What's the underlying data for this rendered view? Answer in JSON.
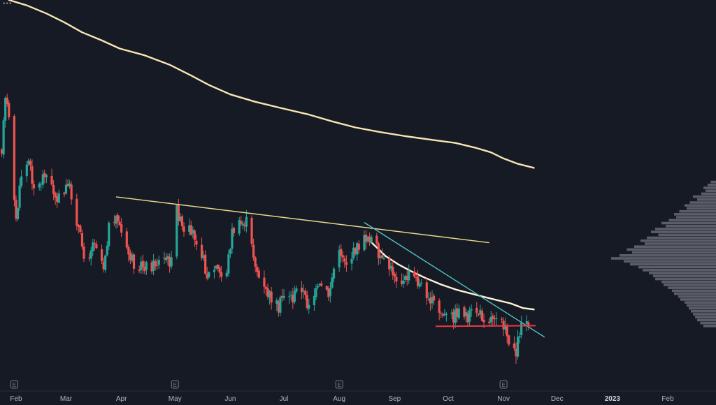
{
  "chart_data": {
    "type": "candlestick",
    "x_axis": {
      "labels": [
        {
          "text": "Feb",
          "date": "2022-02-01"
        },
        {
          "text": "Mar",
          "date": "2022-03-01"
        },
        {
          "text": "Apr",
          "date": "2022-04-01"
        },
        {
          "text": "May",
          "date": "2022-05-01"
        },
        {
          "text": "Jun",
          "date": "2022-06-01"
        },
        {
          "text": "Jul",
          "date": "2022-07-01"
        },
        {
          "text": "Aug",
          "date": "2022-08-01"
        },
        {
          "text": "Sep",
          "date": "2022-09-01"
        },
        {
          "text": "Oct",
          "date": "2022-10-01"
        },
        {
          "text": "Nov",
          "date": "2022-11-01"
        },
        {
          "text": "Dec",
          "date": "2022-12-01"
        },
        {
          "text": "2023",
          "date": "2023-01-01",
          "emphasis": true
        },
        {
          "text": "Feb",
          "date": "2023-02-01"
        }
      ],
      "range": [
        "2022-01-23",
        "2023-02-28"
      ]
    },
    "y_axis": {
      "visible": false,
      "range": [
        0,
        580
      ]
    },
    "earnings_markers": [
      "2022-01-31",
      "2022-05-01",
      "2022-08-01",
      "2022-11-01"
    ],
    "earnings_label": "E",
    "candles": {
      "start": "2022-01-24",
      "end": "2022-11-15",
      "up_color": "#26a69a",
      "down_color": "#ef5350",
      "path": [
        [
          "2022-01-24",
          220
        ],
        [
          "2022-01-26",
          150
        ],
        [
          "2022-01-28",
          170
        ],
        [
          "2022-02-01",
          330
        ],
        [
          "2022-02-04",
          260
        ],
        [
          "2022-02-08",
          240
        ],
        [
          "2022-02-12",
          290
        ],
        [
          "2022-02-17",
          255
        ],
        [
          "2022-02-22",
          285
        ],
        [
          "2022-02-27",
          300
        ],
        [
          "2022-03-02",
          268
        ],
        [
          "2022-03-08",
          340
        ],
        [
          "2022-03-12",
          390
        ],
        [
          "2022-03-17",
          355
        ],
        [
          "2022-03-22",
          395
        ],
        [
          "2022-03-26",
          318
        ],
        [
          "2022-03-30",
          325
        ],
        [
          "2022-04-03",
          370
        ],
        [
          "2022-04-08",
          390
        ],
        [
          "2022-04-13",
          395
        ],
        [
          "2022-04-18",
          395
        ],
        [
          "2022-04-25",
          385
        ],
        [
          "2022-04-29",
          390
        ],
        [
          "2022-05-02",
          310
        ],
        [
          "2022-05-06",
          350
        ],
        [
          "2022-05-10",
          340
        ],
        [
          "2022-05-15",
          365
        ],
        [
          "2022-05-19",
          410
        ],
        [
          "2022-05-24",
          398
        ],
        [
          "2022-05-29",
          420
        ],
        [
          "2022-06-02",
          345
        ],
        [
          "2022-06-06",
          335
        ],
        [
          "2022-06-10",
          330
        ],
        [
          "2022-06-14",
          380
        ],
        [
          "2022-06-18",
          425
        ],
        [
          "2022-06-23",
          440
        ],
        [
          "2022-06-28",
          455
        ],
        [
          "2022-07-02",
          430
        ],
        [
          "2022-07-06",
          445
        ],
        [
          "2022-07-10",
          418
        ],
        [
          "2022-07-14",
          452
        ],
        [
          "2022-07-18",
          438
        ],
        [
          "2022-07-22",
          425
        ],
        [
          "2022-07-26",
          440
        ],
        [
          "2022-07-30",
          385
        ],
        [
          "2022-08-02",
          375
        ],
        [
          "2022-08-06",
          395
        ],
        [
          "2022-08-10",
          370
        ],
        [
          "2022-08-14",
          362
        ],
        [
          "2022-08-17",
          350
        ],
        [
          "2022-08-21",
          360
        ],
        [
          "2022-08-25",
          390
        ],
        [
          "2022-08-29",
          398
        ],
        [
          "2022-09-02",
          410
        ],
        [
          "2022-09-06",
          420
        ],
        [
          "2022-09-10",
          405
        ],
        [
          "2022-09-14",
          420
        ],
        [
          "2022-09-18",
          432
        ],
        [
          "2022-09-22",
          445
        ],
        [
          "2022-09-26",
          465
        ],
        [
          "2022-09-30",
          472
        ],
        [
          "2022-10-04",
          470
        ],
        [
          "2022-10-08",
          458
        ],
        [
          "2022-10-12",
          470
        ],
        [
          "2022-10-16",
          460
        ],
        [
          "2022-10-20",
          470
        ],
        [
          "2022-10-24",
          475
        ],
        [
          "2022-10-28",
          465
        ],
        [
          "2022-10-31",
          470
        ],
        [
          "2022-11-02",
          490
        ],
        [
          "2022-11-05",
          512
        ],
        [
          "2022-11-08",
          520
        ],
        [
          "2022-11-11",
          478
        ],
        [
          "2022-11-15",
          475
        ]
      ]
    },
    "moving_averages": [
      {
        "color": "#f5e6b3",
        "points": [
          [
            "2022-01-28",
            0
          ],
          [
            "2022-02-07",
            8
          ],
          [
            "2022-02-18",
            20
          ],
          [
            "2022-02-28",
            33
          ],
          [
            "2022-03-10",
            48
          ],
          [
            "2022-03-21",
            60
          ],
          [
            "2022-03-31",
            72
          ],
          [
            "2022-04-14",
            82
          ],
          [
            "2022-04-28",
            96
          ],
          [
            "2022-05-10",
            112
          ],
          [
            "2022-05-20",
            126
          ],
          [
            "2022-06-01",
            140
          ],
          [
            "2022-06-15",
            151
          ],
          [
            "2022-06-29",
            160
          ],
          [
            "2022-07-15",
            170
          ],
          [
            "2022-07-28",
            180
          ],
          [
            "2022-08-10",
            189
          ],
          [
            "2022-08-24",
            196
          ],
          [
            "2022-09-07",
            202
          ],
          [
            "2022-09-21",
            207
          ],
          [
            "2022-10-05",
            212
          ],
          [
            "2022-10-16",
            219
          ],
          [
            "2022-10-25",
            226
          ],
          [
            "2022-11-01",
            235
          ],
          [
            "2022-11-09",
            243
          ],
          [
            "2022-11-18",
            249
          ]
        ]
      },
      {
        "color": "#fff3d6",
        "points": [
          [
            "2022-08-15",
            350
          ],
          [
            "2022-08-20",
            362
          ],
          [
            "2022-08-27",
            380
          ],
          [
            "2022-09-03",
            392
          ],
          [
            "2022-09-10",
            402
          ],
          [
            "2022-09-18",
            412
          ],
          [
            "2022-09-27",
            422
          ],
          [
            "2022-10-06",
            430
          ],
          [
            "2022-10-16",
            437
          ],
          [
            "2022-10-25",
            443
          ],
          [
            "2022-11-05",
            450
          ],
          [
            "2022-11-12",
            457
          ],
          [
            "2022-11-18",
            459
          ]
        ]
      }
    ],
    "trendlines": [
      {
        "color": "#e6d98a",
        "from": [
          "2022-03-29",
          292
        ],
        "to": [
          "2022-10-24",
          360
        ]
      },
      {
        "color": "#4fc3c3",
        "from": [
          "2022-08-15",
          330
        ],
        "to": [
          "2022-11-24",
          500
        ]
      },
      {
        "color": "#f23645",
        "from": [
          "2022-09-24",
          484
        ],
        "to": [
          "2022-11-19",
          483
        ]
      }
    ],
    "volume_profile": {
      "color": "#9598a1",
      "price_range": [
        268,
        486
      ],
      "max_width": 150,
      "rows": [
        0.05,
        0.08,
        0.12,
        0.1,
        0.14,
        0.22,
        0.18,
        0.25,
        0.3,
        0.28,
        0.35,
        0.4,
        0.38,
        0.45,
        0.52,
        0.48,
        0.58,
        0.62,
        0.55,
        0.66,
        0.72,
        0.68,
        0.78,
        0.85,
        0.8,
        0.92,
        1.0,
        0.88,
        0.82,
        0.74,
        0.7,
        0.64,
        0.6,
        0.58,
        0.52,
        0.5,
        0.46,
        0.42,
        0.4,
        0.36,
        0.34,
        0.3,
        0.28,
        0.26,
        0.24,
        0.22,
        0.2,
        0.18,
        0.15,
        0.12
      ]
    }
  }
}
